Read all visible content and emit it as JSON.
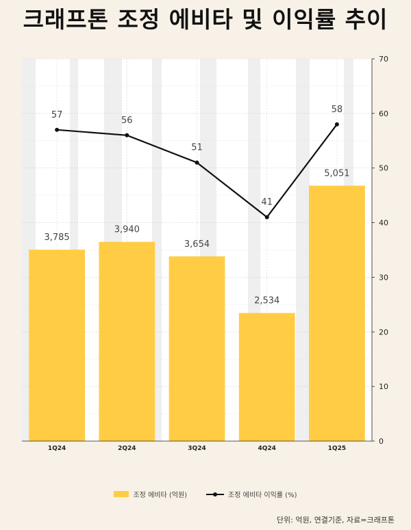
{
  "title": "크래프톤 조정 에비타 및 이익률 추이",
  "footnote": "단위: 억원, 연결기준, 자료=크래프톤",
  "chart_data": {
    "type": "bar",
    "categories": [
      "1Q24",
      "2Q24",
      "3Q24",
      "4Q24",
      "1Q25"
    ],
    "series": [
      {
        "name": "조정 에비타 (억원)",
        "type": "bar",
        "values": [
          3785,
          3940,
          3654,
          2534,
          5051
        ],
        "labels": [
          "3,785",
          "3,940",
          "3,654",
          "2,534",
          "5,051"
        ],
        "color": "#ffcc44"
      },
      {
        "name": "조정 에비타 이익률 (%)",
        "type": "line",
        "axis": "right",
        "values": [
          57,
          56,
          51,
          41,
          58
        ],
        "labels": [
          "57",
          "56",
          "51",
          "41",
          "58"
        ],
        "color": "#111111"
      }
    ],
    "y_right": {
      "lim": [
        0,
        70
      ],
      "ticks": [
        "0",
        "10",
        "20",
        "30",
        "40",
        "50",
        "60",
        "70"
      ]
    },
    "bar_axis_max": 7560,
    "grid": true,
    "legend": "bottom"
  }
}
